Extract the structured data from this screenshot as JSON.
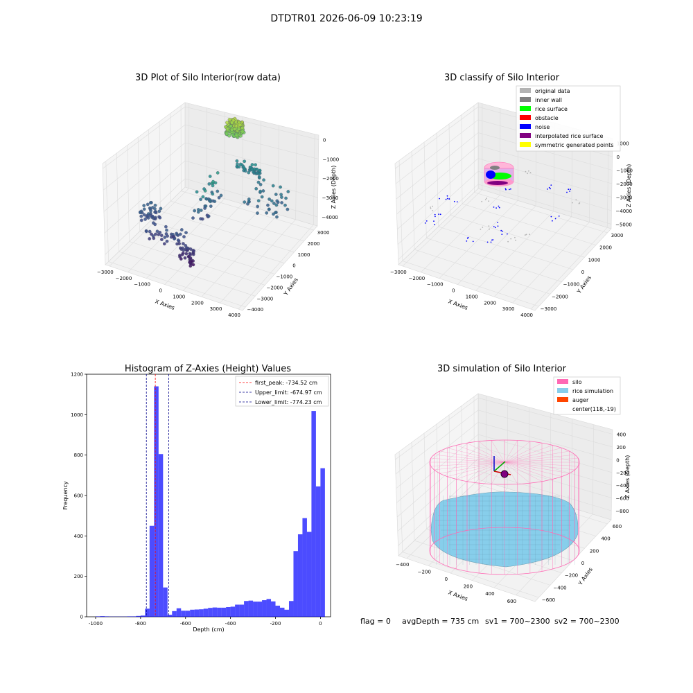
{
  "suptitle": "DTDTR01 2026-06-09 10:23:19",
  "footer": {
    "flag": "flag = 0",
    "avg_depth": "avgDepth = 735 cm",
    "sv1": "sv1 = 700~2300",
    "sv2": "sv2 = 700~2300"
  },
  "chart_data": [
    {
      "type": "scatter",
      "title": "3D Plot of Silo Interior(row data)",
      "xlabel": "X Axies",
      "ylabel": "Y Axies",
      "zlabel": "Z Axies (Depth)",
      "x_ticks": [
        "−3000",
        "−2000",
        "−1000",
        "0",
        "1000",
        "2000",
        "3000",
        "4000"
      ],
      "y_ticks": [
        "−4000",
        "−3000",
        "−2000",
        "−1000",
        "0",
        "1000",
        "2000",
        "3000"
      ],
      "z_ticks": [
        "−4000",
        "−3000",
        "−2000",
        "−1000",
        "0"
      ],
      "xlim": [
        -3300,
        4500
      ],
      "ylim": [
        -4200,
        3600
      ],
      "zlim": [
        -4500,
        0
      ],
      "colormap": "viridis",
      "clusters": [
        {
          "x": [
            -400,
            400
          ],
          "y": [
            2700,
            3300
          ],
          "z": [
            -1000,
            -500
          ]
        },
        {
          "x": [
            -100,
            1400
          ],
          "y": [
            2900,
            3300
          ],
          "z": [
            -2600,
            -2200
          ]
        },
        {
          "x": [
            1400,
            3500
          ],
          "y": [
            1000,
            2900
          ],
          "z": [
            -3100,
            -2500
          ]
        },
        {
          "x": [
            -2800,
            -1900
          ],
          "y": [
            -1800,
            -800
          ],
          "z": [
            -3500,
            -3000
          ]
        },
        {
          "x": [
            -1900,
            0
          ],
          "y": [
            -2600,
            -1700
          ],
          "z": [
            -3700,
            -3200
          ]
        },
        {
          "x": [
            0,
            700
          ],
          "y": [
            -2700,
            -2200
          ],
          "z": [
            -4300,
            -3500
          ]
        },
        {
          "x": [
            -500,
            300
          ],
          "y": [
            -600,
            1500
          ],
          "z": [
            -3600,
            -2000
          ]
        }
      ]
    },
    {
      "type": "scatter",
      "title": "3D classify of Silo Interior",
      "xlabel": "X Axies",
      "ylabel": "Y Axies",
      "zlabel": "Z Axies (Depth)",
      "x_ticks": [
        "−3000",
        "−2000",
        "−1000",
        "0",
        "1000",
        "2000",
        "3000",
        "4000"
      ],
      "y_ticks": [
        "−3000",
        "−2000",
        "−1000",
        "0",
        "1000",
        "2000",
        "3000"
      ],
      "z_ticks": [
        "−5000",
        "−4000",
        "−3000",
        "−2000",
        "−1000",
        "0",
        "1000"
      ],
      "xlim": [
        -3300,
        4500
      ],
      "ylim": [
        -3600,
        3600
      ],
      "zlim": [
        -5500,
        1200
      ],
      "legend_position": "top-right",
      "legend": [
        {
          "label": "original data",
          "color": "#b3b3b3"
        },
        {
          "label": "inner wall",
          "color": "#808080"
        },
        {
          "label": "rice surface",
          "color": "#00ff00"
        },
        {
          "label": "obstacle",
          "color": "#ff0000"
        },
        {
          "label": "noise",
          "color": "#0000ff"
        },
        {
          "label": "interpolated rice surface",
          "color": "#800080"
        },
        {
          "label": "symmetric generated points",
          "color": "#ffff00"
        }
      ]
    },
    {
      "type": "bar",
      "title": "Histogram of Z-Axies (Height) Values",
      "xlabel": "Depth (cm)",
      "ylabel": "Frequency",
      "xlim": [
        -1040,
        45
      ],
      "ylim": [
        0,
        1200
      ],
      "x_ticks": [
        -1000,
        -800,
        -600,
        -400,
        -200,
        0
      ],
      "y_ticks": [
        0,
        200,
        400,
        600,
        800,
        1000,
        1200
      ],
      "bar_color": "#0000ff",
      "bin_start": -1000,
      "bin_width": 20,
      "values": [
        2,
        3,
        2,
        1,
        1,
        1,
        1,
        2,
        2,
        4,
        6,
        40,
        450,
        1140,
        805,
        145,
        10,
        28,
        42,
        30,
        30,
        35,
        36,
        37,
        40,
        44,
        46,
        45,
        45,
        48,
        50,
        60,
        60,
        78,
        80,
        75,
        75,
        82,
        88,
        76,
        55,
        45,
        35,
        78,
        325,
        408,
        488,
        420,
        1018,
        645,
        735
      ],
      "lines": [
        {
          "label": "first_peak: -734.52 cm",
          "value": -734.52,
          "color": "#ff0000"
        },
        {
          "label": "Upper_limit: -674.97 cm",
          "value": -674.97,
          "color": "#00008b"
        },
        {
          "label": "Lower_limit: -774.23 cm",
          "value": -774.23,
          "color": "#00008b"
        }
      ],
      "legend_position": "top-right"
    },
    {
      "type": "surface",
      "title": "3D simulation of Silo Interior",
      "xlabel": "X Axies",
      "ylabel": "Y Axies",
      "zlabel": "Z Axies (Depth)",
      "x_ticks": [
        "−400",
        "−200",
        "0",
        "200",
        "400",
        "600"
      ],
      "y_ticks": [
        "−600",
        "−400",
        "−200",
        "0",
        "200",
        "400",
        "600"
      ],
      "z_ticks": [
        "−800",
        "−600",
        "−400",
        "−200",
        "0",
        "200",
        "400"
      ],
      "xlim": [
        -560,
        780
      ],
      "ylim": [
        -700,
        700
      ],
      "zlim": [
        -950,
        450
      ],
      "legend_position": "top-right",
      "legend": [
        {
          "label": "silo",
          "color": "#ff69b4"
        },
        {
          "label": "rice simulation",
          "color": "#87ceeb"
        },
        {
          "label": "auger",
          "color": "#ff4500"
        },
        {
          "label": "center(118,-19)",
          "color": "none"
        }
      ]
    }
  ]
}
